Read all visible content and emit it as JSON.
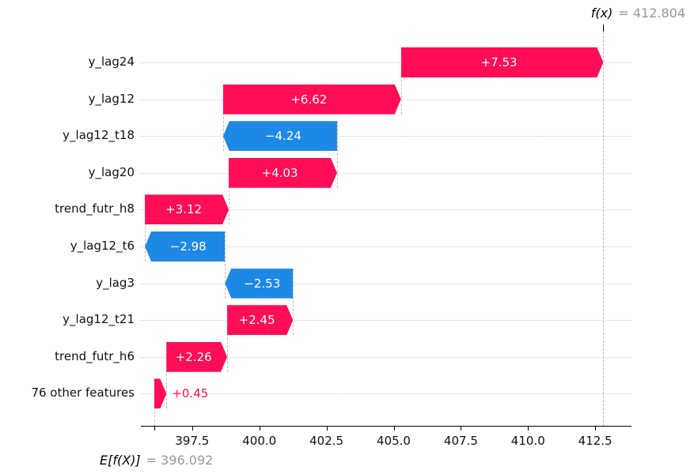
{
  "figure": {
    "fx_annotation": {
      "name": "f(x)",
      "rest": "= 412.804"
    },
    "base_annotation": {
      "name": "E[f(X)]",
      "rest": "= 396.092"
    }
  },
  "chart_data": {
    "type": "bar",
    "subtype": "shap-waterfall",
    "title": "",
    "xlabel": "",
    "ylabel": "",
    "base_value": 396.092,
    "fx_value": 412.804,
    "features": [
      {
        "name": "y_lag24",
        "value": 7.53,
        "label": "+7.53"
      },
      {
        "name": "y_lag12",
        "value": 6.62,
        "label": "+6.62"
      },
      {
        "name": "y_lag12_t18",
        "value": -4.24,
        "label": "−4.24"
      },
      {
        "name": "y_lag20",
        "value": 4.03,
        "label": "+4.03"
      },
      {
        "name": "trend_futr_h8",
        "value": 3.12,
        "label": "+3.12"
      },
      {
        "name": "y_lag12_t6",
        "value": -2.98,
        "label": "−2.98"
      },
      {
        "name": "y_lag3",
        "value": -2.53,
        "label": "−2.53"
      },
      {
        "name": "y_lag12_t21",
        "value": 2.45,
        "label": "+2.45"
      },
      {
        "name": "trend_futr_h6",
        "value": 2.26,
        "label": "+2.26"
      },
      {
        "name": "76 other features",
        "value": 0.45,
        "label": "+0.45"
      }
    ],
    "x_tick_values": [
      397.5,
      400.0,
      402.5,
      405.0,
      407.5,
      410.0,
      412.5
    ],
    "x_tick_labels": [
      "397.5",
      "400.0",
      "402.5",
      "405.0",
      "407.5",
      "410.0",
      "412.5"
    ],
    "xlim": [
      395.59,
      413.85
    ],
    "grid": "horizontal-dotted",
    "legend": "none",
    "colors": {
      "positive": "#ff0d57",
      "negative": "#1e88e5",
      "annotation_muted": "#999999",
      "dashed_line": "#bbbbbb",
      "gridline": "#cfcfcf"
    }
  }
}
